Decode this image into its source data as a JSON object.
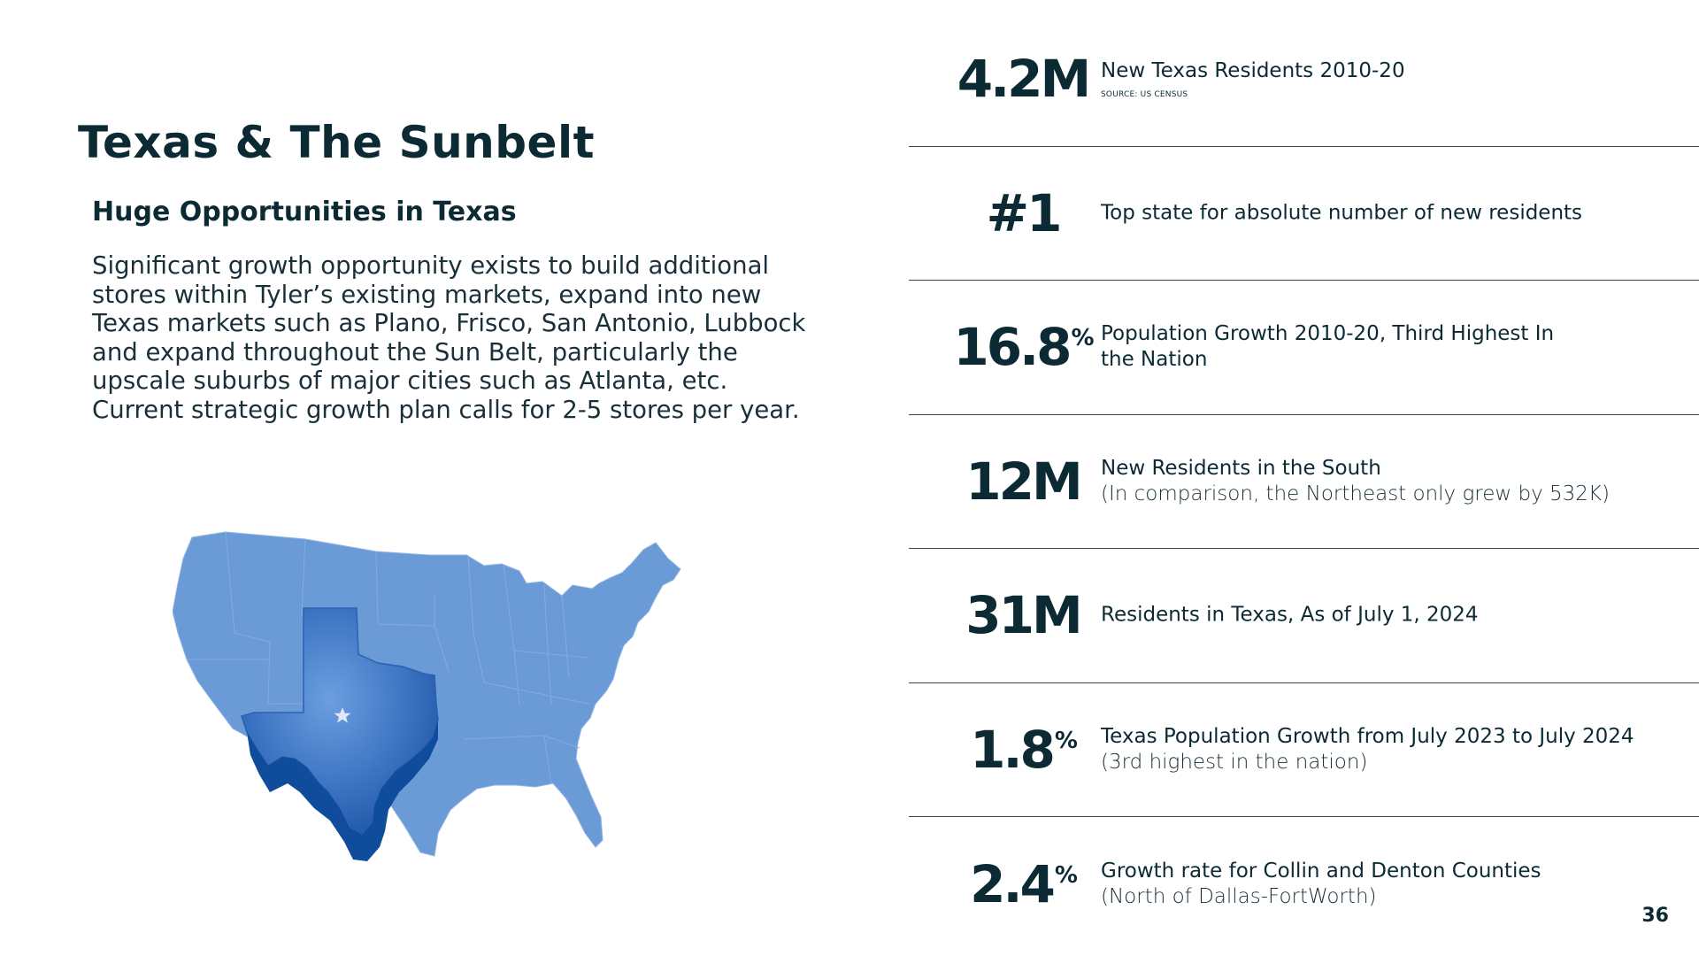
{
  "slide": {
    "title": "Texas & The Sunbelt",
    "subtitle": "Huge Opportunities in Texas",
    "body": "Significant growth opportunity exists to build additional stores within Tyler’s existing markets, expand into new Texas markets such as Plano, Frisco, San Antonio, Lubbock and expand throughout the Sun Belt, particularly the upscale suburbs of major cities such as Atlanta, etc. Current strategic growth plan calls for 2-5 stores per year.",
    "page_number": "36"
  },
  "map": {
    "icon": "us-map-texas-highlight",
    "colors": {
      "us": "#6b9bd6",
      "texas": "#3f78c6",
      "texas_edge": "#0f4d9c",
      "star": "#dfe9f7"
    }
  },
  "stats": [
    {
      "value": "4.2M",
      "suffix": "",
      "main": "New Texas Residents 2010-20",
      "sub": "",
      "source": "SOURCE: US CENSUS"
    },
    {
      "value": "#1",
      "suffix": "",
      "main": "Top state for absolute number of new residents",
      "sub": "",
      "source": ""
    },
    {
      "value": "16.8",
      "suffix": "%",
      "main": "Population Growth 2010-20, Third Highest In the Nation",
      "sub": "",
      "source": ""
    },
    {
      "value": "12M",
      "suffix": "",
      "main": "New Residents in the South",
      "sub": "(In comparison, the Northeast only grew by 532K)",
      "source": ""
    },
    {
      "value": "31M",
      "suffix": "",
      "main": "Residents in Texas, As of July 1, 2024",
      "sub": "",
      "source": ""
    },
    {
      "value": "1.8",
      "suffix": "%",
      "main": "Texas Population Growth from July 2023 to July 2024",
      "sub": "(3rd highest in the nation)",
      "source": ""
    },
    {
      "value": "2.4",
      "suffix": "%",
      "main": "Growth rate for Collin and Denton Counties",
      "sub": "(North of Dallas-FortWorth)",
      "source": ""
    }
  ]
}
